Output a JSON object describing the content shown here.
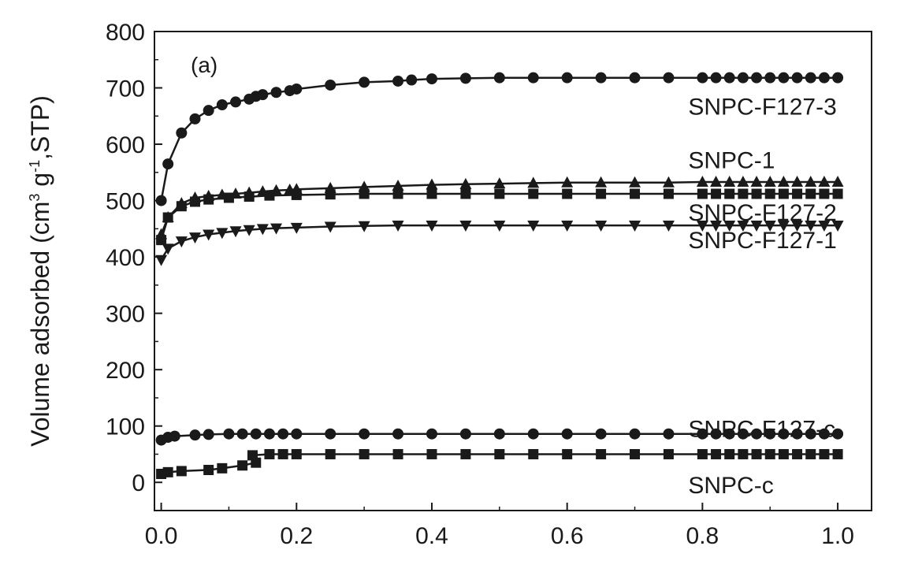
{
  "chart_data": {
    "type": "line",
    "title": "",
    "panel_label": "(a)",
    "xlabel": "",
    "ylabel": {
      "main": "Volume adsorbed (cm",
      "sup1": "3",
      "mid": " g",
      "sup2": "-1",
      "end": ",STP)"
    },
    "xlim": [
      -0.01,
      1.05
    ],
    "ylim": [
      -50,
      800
    ],
    "xticks": [
      0.0,
      0.2,
      0.4,
      0.6,
      0.8,
      1.0
    ],
    "xtick_labels": [
      "0.0",
      "0.2",
      "0.4",
      "0.6",
      "0.8",
      "1.0"
    ],
    "yticks": [
      0,
      100,
      200,
      300,
      400,
      500,
      600,
      700,
      800
    ],
    "ytick_labels": [
      "0",
      "100",
      "200",
      "300",
      "400",
      "500",
      "600",
      "700",
      "800"
    ],
    "grid": false,
    "colors": {
      "line": "#1a1a1a",
      "marker": "#1a1a1a",
      "axis": "#1a1a1a"
    },
    "series": [
      {
        "name": "SNPC-F127-3",
        "marker": "circle",
        "x": [
          0.0,
          0.01,
          0.03,
          0.05,
          0.07,
          0.09,
          0.11,
          0.13,
          0.14,
          0.15,
          0.17,
          0.19,
          0.2,
          0.25,
          0.3,
          0.35,
          0.37,
          0.4,
          0.45,
          0.5,
          0.55,
          0.6,
          0.65,
          0.7,
          0.75,
          0.8,
          0.82,
          0.84,
          0.86,
          0.88,
          0.9,
          0.92,
          0.94,
          0.96,
          0.98,
          1.0
        ],
        "y": [
          500,
          565,
          620,
          645,
          660,
          670,
          675,
          680,
          685,
          688,
          692,
          695,
          698,
          705,
          710,
          712,
          714,
          716,
          717,
          718,
          718,
          718,
          718,
          718,
          718,
          718,
          718,
          718,
          718,
          718,
          718,
          718,
          718,
          718,
          718,
          718
        ]
      },
      {
        "name": "SNPC-1",
        "marker": "triangle-up",
        "x": [
          0.0,
          0.01,
          0.03,
          0.05,
          0.07,
          0.09,
          0.11,
          0.13,
          0.15,
          0.17,
          0.19,
          0.2,
          0.25,
          0.3,
          0.35,
          0.4,
          0.45,
          0.5,
          0.55,
          0.6,
          0.65,
          0.7,
          0.75,
          0.8,
          0.82,
          0.84,
          0.86,
          0.88,
          0.9,
          0.92,
          0.94,
          0.96,
          0.98,
          1.0
        ],
        "y": [
          440,
          470,
          495,
          505,
          508,
          510,
          512,
          514,
          516,
          518,
          519,
          520,
          522,
          524,
          526,
          528,
          529,
          530,
          531,
          532,
          532,
          532,
          532,
          533,
          533,
          533,
          533,
          533,
          533,
          533,
          533,
          533,
          533,
          533
        ]
      },
      {
        "name": "SNPC-F127-2",
        "marker": "square",
        "x": [
          0.0,
          0.01,
          0.03,
          0.05,
          0.07,
          0.1,
          0.13,
          0.16,
          0.2,
          0.25,
          0.3,
          0.35,
          0.4,
          0.45,
          0.5,
          0.55,
          0.6,
          0.65,
          0.7,
          0.75,
          0.8,
          0.82,
          0.84,
          0.86,
          0.88,
          0.9,
          0.92,
          0.94,
          0.96,
          0.98,
          1.0
        ],
        "y": [
          430,
          470,
          490,
          498,
          502,
          505,
          507,
          509,
          510,
          511,
          512,
          512,
          512,
          512,
          512,
          512,
          512,
          512,
          512,
          512,
          512,
          512,
          512,
          512,
          512,
          512,
          512,
          512,
          512,
          512,
          512
        ]
      },
      {
        "name": "SNPC-F127-1",
        "marker": "triangle-down",
        "x": [
          0.0,
          0.01,
          0.03,
          0.05,
          0.07,
          0.09,
          0.11,
          0.13,
          0.15,
          0.17,
          0.2,
          0.25,
          0.3,
          0.35,
          0.4,
          0.45,
          0.5,
          0.55,
          0.6,
          0.65,
          0.7,
          0.75,
          0.8,
          0.82,
          0.84,
          0.86,
          0.88,
          0.9,
          0.92,
          0.94,
          0.96,
          0.98,
          1.0
        ],
        "y": [
          395,
          415,
          428,
          435,
          440,
          443,
          446,
          448,
          450,
          451,
          452,
          454,
          455,
          456,
          456,
          456,
          456,
          456,
          456,
          456,
          456,
          456,
          456,
          456,
          456,
          456,
          456,
          456,
          456,
          456,
          456,
          456,
          456
        ]
      },
      {
        "name": "SNPC-F127-c",
        "marker": "circle",
        "x": [
          0.0,
          0.01,
          0.02,
          0.05,
          0.07,
          0.1,
          0.12,
          0.14,
          0.16,
          0.18,
          0.2,
          0.25,
          0.3,
          0.35,
          0.4,
          0.45,
          0.5,
          0.55,
          0.6,
          0.65,
          0.7,
          0.75,
          0.8,
          0.82,
          0.84,
          0.86,
          0.88,
          0.9,
          0.92,
          0.94,
          0.96,
          0.98,
          1.0
        ],
        "y": [
          75,
          80,
          82,
          84,
          85,
          86,
          86,
          86,
          86,
          86,
          86,
          86,
          86,
          86,
          86,
          86,
          86,
          86,
          86,
          86,
          86,
          86,
          86,
          86,
          86,
          86,
          86,
          86,
          86,
          86,
          86,
          86,
          86
        ]
      },
      {
        "name": "SNPC-c",
        "marker": "square",
        "x": [
          0.0,
          0.01,
          0.03,
          0.07,
          0.09,
          0.12,
          0.14,
          0.135,
          0.16,
          0.18,
          0.2,
          0.25,
          0.3,
          0.35,
          0.4,
          0.45,
          0.5,
          0.55,
          0.6,
          0.65,
          0.7,
          0.75,
          0.8,
          0.82,
          0.84,
          0.86,
          0.88,
          0.9,
          0.92,
          0.94,
          0.96,
          0.98,
          1.0
        ],
        "y": [
          15,
          18,
          20,
          22,
          25,
          30,
          35,
          48,
          50,
          50,
          50,
          50,
          50,
          50,
          50,
          50,
          50,
          50,
          50,
          50,
          50,
          50,
          50,
          50,
          50,
          50,
          50,
          50,
          50,
          50,
          50,
          50,
          50
        ]
      }
    ],
    "series_labels": [
      {
        "text": "SNPC-F127-3",
        "x": 0.8,
        "y": 668
      },
      {
        "text": "SNPC-1",
        "x": 0.8,
        "y": 573
      },
      {
        "text": "SNPC-F127-2",
        "x": 0.8,
        "y": 480
      },
      {
        "text": "SNPC-F127-1",
        "x": 0.8,
        "y": 431
      },
      {
        "text": "SNPC-F127-c",
        "x": 0.8,
        "y": 96
      },
      {
        "text": "SNPC-c",
        "x": 0.8,
        "y": -4
      }
    ]
  }
}
